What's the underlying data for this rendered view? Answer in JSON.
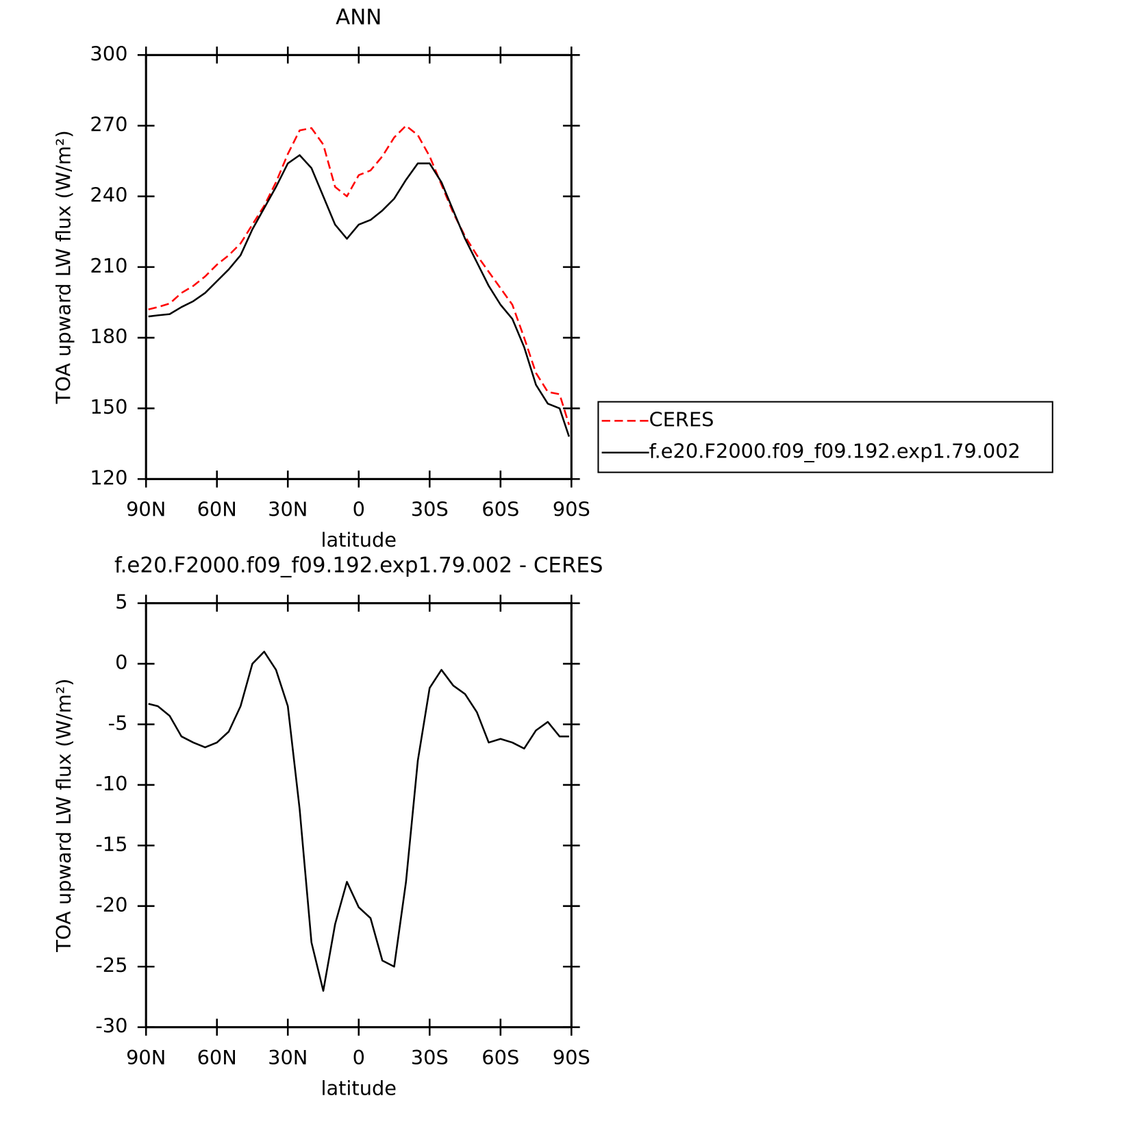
{
  "chart_data": [
    {
      "type": "line",
      "title": "ANN",
      "xlabel": "latitude",
      "ylabel": "TOA upward LW flux (W/m²)",
      "x": [
        89,
        85,
        80,
        75,
        70,
        65,
        60,
        55,
        50,
        45,
        40,
        35,
        30,
        25,
        20,
        15,
        10,
        5,
        0,
        -5,
        -10,
        -15,
        -20,
        -25,
        -30,
        -35,
        -40,
        -45,
        -50,
        -55,
        -60,
        -65,
        -70,
        -75,
        -80,
        -85,
        -89
      ],
      "series": [
        {
          "name": "CERES",
          "color": "#ff0000",
          "linestyle": "dashed",
          "values": [
            192,
            193,
            194.5,
            199,
            202,
            206,
            211,
            215,
            220,
            228,
            236,
            246,
            258,
            268,
            269,
            262,
            244,
            240,
            249,
            251,
            257,
            265,
            270,
            266,
            257,
            245,
            233,
            223,
            215,
            208,
            201,
            194,
            180,
            165,
            157,
            156,
            143
          ]
        },
        {
          "name": "f.e20.F2000.f09_f09.192.exp1.79.002",
          "color": "#000000",
          "linestyle": "solid",
          "values": [
            189,
            189.5,
            190,
            193,
            195.5,
            199,
            204,
            209,
            215,
            226,
            235,
            244,
            254,
            257.5,
            252,
            240,
            228,
            222,
            228,
            230,
            234,
            239,
            247,
            254,
            254,
            246,
            234,
            222,
            212,
            202,
            194,
            188,
            176,
            160,
            152,
            150,
            138
          ]
        }
      ],
      "xlim": [
        90,
        -90
      ],
      "xticks": [
        {
          "value": 90,
          "label": "90N"
        },
        {
          "value": 60,
          "label": "60N"
        },
        {
          "value": 30,
          "label": "30N"
        },
        0,
        {
          "value": -30,
          "label": "30S"
        },
        {
          "value": -60,
          "label": "60S"
        },
        {
          "value": -90,
          "label": "90S"
        }
      ],
      "ylim": [
        120,
        300
      ],
      "yticks": [
        120,
        150,
        180,
        210,
        240,
        270,
        300
      ],
      "legend": "right"
    },
    {
      "type": "line",
      "title": "f.e20.F2000.f09_f09.192.exp1.79.002 - CERES",
      "xlabel": "latitude",
      "ylabel": "TOA upward LW flux (W/m²)",
      "x": [
        89,
        85,
        80,
        75,
        70,
        65,
        60,
        55,
        50,
        45,
        40,
        35,
        30,
        25,
        20,
        15,
        10,
        5,
        0,
        -5,
        -10,
        -15,
        -20,
        -25,
        -30,
        -35,
        -40,
        -45,
        -50,
        -55,
        -60,
        -65,
        -70,
        -75,
        -80,
        -85,
        -89
      ],
      "series": [
        {
          "color": "#000000",
          "linestyle": "solid",
          "values": [
            -3.3,
            -3.5,
            -4.3,
            -6,
            -6.5,
            -6.9,
            -6.5,
            -5.6,
            -3.5,
            0,
            1.0,
            -0.5,
            -3.5,
            -12,
            -23,
            -27,
            -21.5,
            -18,
            -20.1,
            -21,
            -24.5,
            -25,
            -18,
            -8,
            -2,
            -0.5,
            -1.8,
            -2.5,
            -4,
            -6.5,
            -6.2,
            -6.5,
            -7,
            -5.5,
            -4.8,
            -6,
            -6
          ]
        }
      ],
      "xlim": [
        90,
        -90
      ],
      "xticks": [
        {
          "value": 90,
          "label": "90N"
        },
        {
          "value": 60,
          "label": "60N"
        },
        {
          "value": 30,
          "label": "30N"
        },
        0,
        {
          "value": -30,
          "label": "30S"
        },
        {
          "value": -60,
          "label": "60S"
        },
        {
          "value": -90,
          "label": "90S"
        }
      ],
      "ylim": [
        -30,
        5
      ],
      "yticks": [
        -30,
        -25,
        -20,
        -15,
        -10,
        -5,
        0,
        5
      ]
    }
  ]
}
